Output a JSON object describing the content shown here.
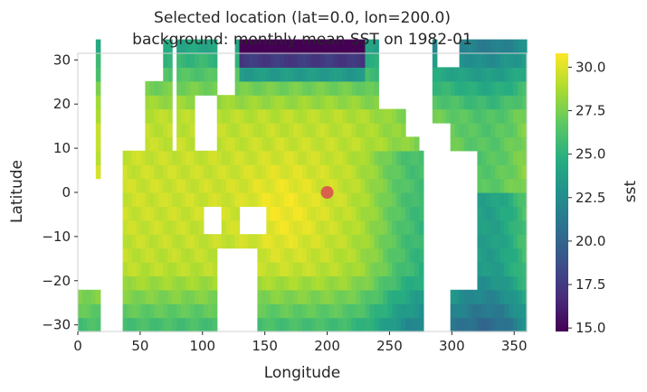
{
  "chart_data": {
    "type": "heatmap",
    "title": "Selected location (lat=0.0, lon=200.0)",
    "subtitle": "background: monthly mean SST on 1982-01",
    "xlabel": "Longitude",
    "ylabel": "Latitude",
    "xlim": [
      0,
      360
    ],
    "ylim": [
      -31.5,
      31.5
    ],
    "xticks": [
      "0",
      "50",
      "100",
      "150",
      "200",
      "250",
      "300",
      "350"
    ],
    "xtick_values": [
      0,
      50,
      100,
      150,
      200,
      250,
      300,
      350
    ],
    "yticks": [
      "−30",
      "−20",
      "−10",
      "0",
      "10",
      "20",
      "30"
    ],
    "ytick_values": [
      -30,
      -20,
      -10,
      0,
      10,
      20,
      30
    ],
    "colorbar": {
      "label": "sst",
      "colormap": "viridis",
      "range": [
        14.8,
        30.8
      ],
      "ticks": [
        "15.0",
        "17.5",
        "20.0",
        "22.5",
        "25.0",
        "27.5",
        "30.0"
      ],
      "tick_values": [
        15.0,
        17.5,
        20.0,
        22.5,
        25.0,
        27.5,
        30.0
      ]
    },
    "grid": false,
    "selected_point": {
      "lon": 200.0,
      "lat": 0.0,
      "color": "#d9534f"
    },
    "colors": {
      "axis_frame": "#d0d0d0",
      "text": "#262626",
      "missing": "#ffffff"
    }
  }
}
